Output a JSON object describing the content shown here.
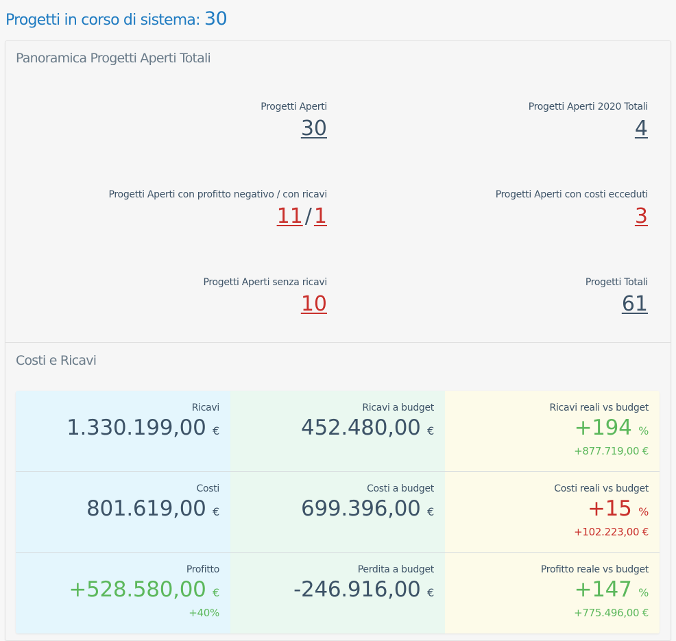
{
  "header": {
    "title": "Progetti in corso di sistema:",
    "count": "30"
  },
  "overview": {
    "title": "Panoramica Progetti Aperti Totali",
    "stats": [
      {
        "label": "Progetti Aperti",
        "value": "30"
      },
      {
        "label": "Progetti Aperti 2020 Totali",
        "value": "4"
      },
      {
        "label": "Progetti Aperti con profitto negativo / con ricavi",
        "value_a": "11",
        "separator": "/",
        "value_b": "1"
      },
      {
        "label": "Progetti Aperti con costi ecceduti",
        "value": "3"
      },
      {
        "label": "Progetti Aperti senza ricavi",
        "value": "10"
      },
      {
        "label": "Progetti Totali",
        "value": "61"
      }
    ]
  },
  "costs": {
    "title": "Costi e Ricavi",
    "currency": "€",
    "percent": "%",
    "rows": [
      {
        "actual": {
          "label": "Ricavi",
          "value": "1.330.199,00"
        },
        "budget": {
          "label": "Ricavi a budget",
          "value": "452.480,00"
        },
        "compare": {
          "label": "Ricavi reali vs budget",
          "pct": "+194",
          "diff": "+877.719,00 €"
        }
      },
      {
        "actual": {
          "label": "Costi",
          "value": "801.619,00"
        },
        "budget": {
          "label": "Costi a budget",
          "value": "699.396,00"
        },
        "compare": {
          "label": "Costi reali vs budget",
          "pct": "+15",
          "diff": "+102.223,00 €"
        }
      },
      {
        "actual": {
          "label": "Profitto",
          "value": "+528.580,00",
          "sub": "+40%"
        },
        "budget": {
          "label": "Perdita a budget",
          "value": "-246.916,00"
        },
        "compare": {
          "label": "Profitto reale vs budget",
          "pct": "+147",
          "diff": "+775.496,00 €"
        }
      }
    ]
  },
  "colors": {
    "accent": "#1f7bc1",
    "text": "#3d5367",
    "negative": "#c9302c",
    "positive": "#5cb85c"
  }
}
